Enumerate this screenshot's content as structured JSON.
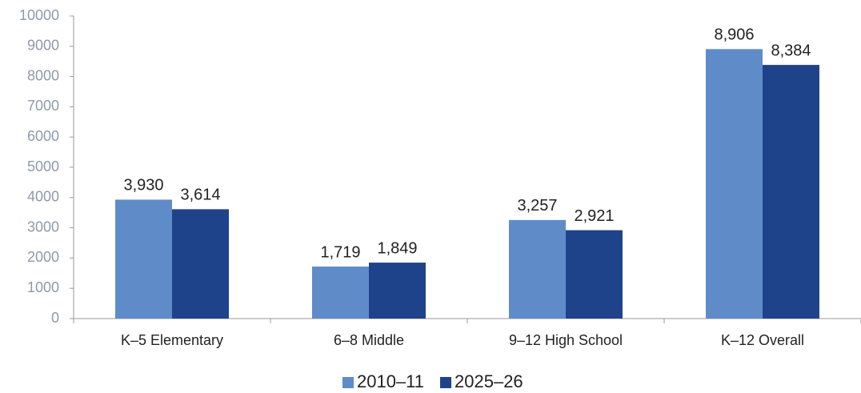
{
  "chart_data": {
    "type": "bar",
    "categories": [
      "K–5 Elementary",
      "6–8 Middle",
      "9–12 High School",
      "K–12 Overall"
    ],
    "series": [
      {
        "name": "2010–11",
        "color": "#5f8cc8",
        "values": [
          3930,
          1719,
          3257,
          8906
        ],
        "value_labels": [
          "3,930",
          "1,719",
          "3,257",
          "8,906"
        ]
      },
      {
        "name": "2025–26",
        "color": "#1f438b",
        "values": [
          3614,
          1849,
          2921,
          8384
        ],
        "value_labels": [
          "3,614",
          "1,849",
          "2,921",
          "8,384"
        ]
      }
    ],
    "ylim": [
      0,
      10000
    ],
    "yticks": [
      0,
      1000,
      2000,
      3000,
      4000,
      5000,
      6000,
      7000,
      8000,
      9000,
      10000
    ],
    "grid": false,
    "legend": "bottom"
  }
}
